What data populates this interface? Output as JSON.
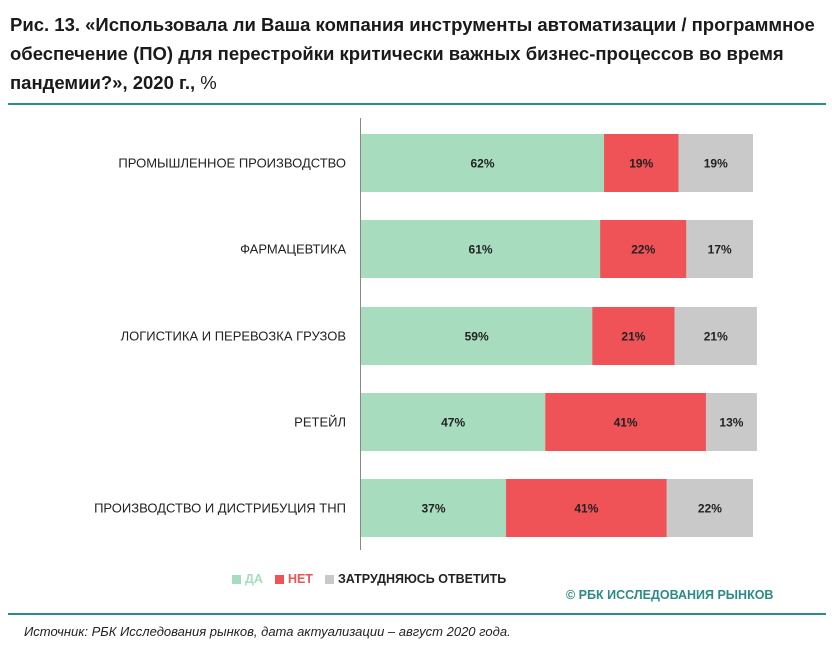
{
  "title": {
    "main": "Рис. 13. «Использовала ли Ваша компания инструменты автоматизации / программное обеспечение (ПО) для перестройки критически важных бизнес-процессов во время пандемии?», 2020 г.,",
    "unit": "%"
  },
  "chart_data": {
    "type": "bar",
    "orientation": "horizontal",
    "stacked": true,
    "percent_stacked": true,
    "categories": [
      "ПРОМЫШЛЕННОЕ ПРОИЗВОДСТВО",
      "ФАРМАЦЕВТИКА",
      "ЛОГИСТИКА И ПЕРЕВОЗКА ГРУЗОВ",
      "РЕТЕЙЛ",
      "ПРОИЗВОДСТВО И ДИСТРИБУЦИЯ ТНП"
    ],
    "series": [
      {
        "name": "ДА",
        "color": "#a8dcbf",
        "values": [
          62,
          61,
          59,
          47,
          37
        ]
      },
      {
        "name": "НЕТ",
        "color": "#ef5257",
        "values": [
          19,
          22,
          21,
          41,
          41
        ]
      },
      {
        "name": "ЗАТРУДНЯЮСЬ ОТВЕТИТЬ",
        "color": "#c9c9c9",
        "values": [
          19,
          17,
          21,
          13,
          22
        ]
      }
    ],
    "value_suffix": "%",
    "legend_position": "bottom-left"
  },
  "copyright": "© РБК ИССЛЕДОВАНИЯ РЫНКОВ",
  "source": "Источник: РБК Исследования рынков, дата актуализации – август 2020 года."
}
